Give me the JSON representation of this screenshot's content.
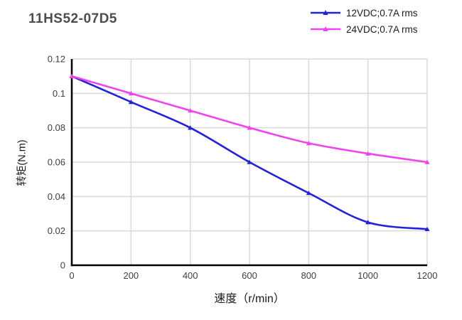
{
  "title": "11HS52-07D5",
  "chart_data": {
    "type": "line",
    "title": "11HS52-07D5",
    "xlabel": "速度（r/min）",
    "ylabel": "转矩(N.m)",
    "x": [
      0,
      200,
      400,
      600,
      800,
      1000,
      1200
    ],
    "x_tick_labels": [
      "0",
      "200",
      "400",
      "600",
      "800",
      "1000",
      "1200"
    ],
    "y_ticks": [
      0,
      0.02,
      0.04,
      0.06,
      0.08,
      0.1,
      0.12
    ],
    "y_tick_labels": [
      "0",
      "0.02",
      "0.04",
      "0.06",
      "0.08",
      "0.1",
      "0.12"
    ],
    "xlim": [
      0,
      1200
    ],
    "ylim": [
      0,
      0.12
    ],
    "grid": true,
    "smooth": true,
    "marker": "triangle",
    "legend_position": "top-right",
    "series": [
      {
        "name": "12VDC;0.7A rms",
        "color": "#2222DD",
        "values": [
          0.11,
          0.095,
          0.08,
          0.06,
          0.042,
          0.025,
          0.021
        ]
      },
      {
        "name": "24VDC;0.7A rms",
        "color": "#EE44EE",
        "values": [
          0.11,
          0.1,
          0.09,
          0.08,
          0.071,
          0.065,
          0.06
        ]
      }
    ]
  },
  "colors": {
    "grid": "#D9D9D9",
    "axis": "#000000",
    "title_text": "#4D4D4D",
    "tick_text": "#404040"
  }
}
